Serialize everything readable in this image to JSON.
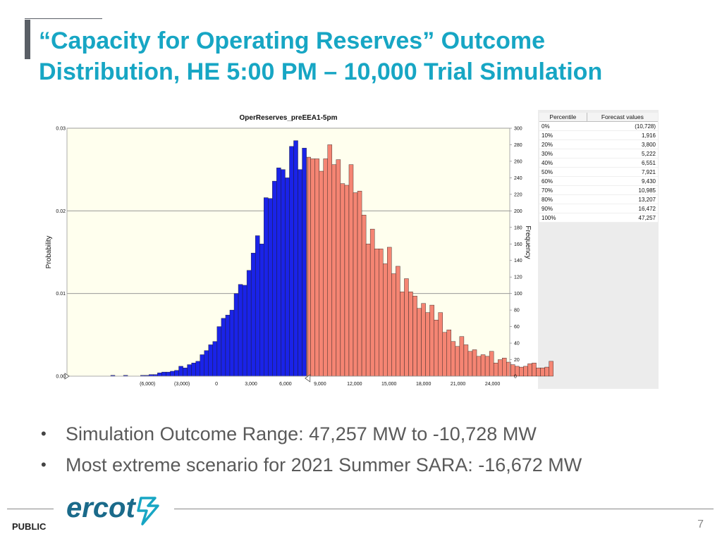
{
  "slide": {
    "title_line1": "“Capacity for Operating Reserves” Outcome",
    "title_line2": "Distribution, HE 5:00 PM – 10,000 Trial Simulation",
    "bullets": [
      "Simulation Outcome Range: 47,257 MW to -10,728 MW",
      "Most extreme scenario for 2021 Summer SARA: -16,672 MW"
    ],
    "footer_label": "PUBLIC",
    "page_number": "7",
    "logo_text": "ercot"
  },
  "colors": {
    "title": "#17a6c4",
    "below_split": "#1a23e8",
    "above_split": "#f58573",
    "plot_bg": "#ffffee",
    "logo": "#1a6a8a"
  },
  "percentile_table": {
    "headers": [
      "Percentile",
      "Forecast values"
    ],
    "rows": [
      {
        "p": "0%",
        "v": "(10,728)"
      },
      {
        "p": "10%",
        "v": "1,916"
      },
      {
        "p": "20%",
        "v": "3,800"
      },
      {
        "p": "30%",
        "v": "5,222"
      },
      {
        "p": "40%",
        "v": "6,551"
      },
      {
        "p": "50%",
        "v": "7,921"
      },
      {
        "p": "60%",
        "v": "9,430"
      },
      {
        "p": "70%",
        "v": "10,985"
      },
      {
        "p": "80%",
        "v": "13,207"
      },
      {
        "p": "90%",
        "v": "16,472"
      },
      {
        "p": "100%",
        "v": "47,257"
      }
    ]
  },
  "chart_data": {
    "type": "bar",
    "title": "OperReserves_preEEA1-5pm",
    "ylabel": "Probability",
    "y2label": "Frequency",
    "xlim": [
      -13000,
      25500
    ],
    "ylim": [
      0,
      0.03
    ],
    "y2lim": [
      0,
      300
    ],
    "xticks": [
      {
        "v": -6000,
        "label": "(6,000)"
      },
      {
        "v": -3000,
        "label": "(3,000)"
      },
      {
        "v": 0,
        "label": "0"
      },
      {
        "v": 3000,
        "label": "3,000"
      },
      {
        "v": 6000,
        "label": "6,000"
      },
      {
        "v": 9000,
        "label": "9,000"
      },
      {
        "v": 12000,
        "label": "12,000"
      },
      {
        "v": 15000,
        "label": "15,000"
      },
      {
        "v": 18000,
        "label": "18,000"
      },
      {
        "v": 21000,
        "label": "21,000"
      },
      {
        "v": 24000,
        "label": "24,000"
      }
    ],
    "yticks": [
      {
        "v": 0,
        "label": "0.00"
      },
      {
        "v": 0.01,
        "label": "0.01"
      },
      {
        "v": 0.02,
        "label": "0.02"
      },
      {
        "v": 0.03,
        "label": "0.03"
      }
    ],
    "y2ticks": [
      {
        "v": 0,
        "label": "0"
      },
      {
        "v": 20,
        "label": "20"
      },
      {
        "v": 40,
        "label": "40"
      },
      {
        "v": 60,
        "label": "60"
      },
      {
        "v": 80,
        "label": "80"
      },
      {
        "v": 100,
        "label": "100"
      },
      {
        "v": 120,
        "label": "120"
      },
      {
        "v": 140,
        "label": "140"
      },
      {
        "v": 160,
        "label": "160"
      },
      {
        "v": 180,
        "label": "180"
      },
      {
        "v": 200,
        "label": "200"
      },
      {
        "v": 220,
        "label": "220"
      },
      {
        "v": 240,
        "label": "240"
      },
      {
        "v": 260,
        "label": "260"
      },
      {
        "v": 280,
        "label": "280"
      },
      {
        "v": 300,
        "label": "300"
      }
    ],
    "bin_start": -9200,
    "bin_width": 370,
    "split_value": 7921,
    "frequencies": [
      1,
      0,
      0,
      1,
      0,
      0,
      0,
      1,
      1,
      2,
      2,
      4,
      5,
      5,
      6,
      7,
      12,
      10,
      14,
      16,
      18,
      26,
      31,
      38,
      42,
      60,
      70,
      74,
      80,
      100,
      111,
      110,
      128,
      149,
      170,
      160,
      216,
      215,
      236,
      252,
      250,
      240,
      278,
      285,
      250,
      276,
      265,
      263,
      263,
      248,
      263,
      280,
      256,
      262,
      233,
      231,
      256,
      222,
      224,
      195,
      160,
      178,
      154,
      154,
      136,
      156,
      124,
      133,
      102,
      118,
      102,
      97,
      82,
      88,
      77,
      86,
      68,
      77,
      53,
      56,
      42,
      36,
      48,
      38,
      30,
      32,
      24,
      26,
      24,
      30,
      16,
      20,
      22,
      17,
      14,
      12,
      11,
      12,
      15,
      16,
      10,
      10,
      11,
      18
    ]
  }
}
